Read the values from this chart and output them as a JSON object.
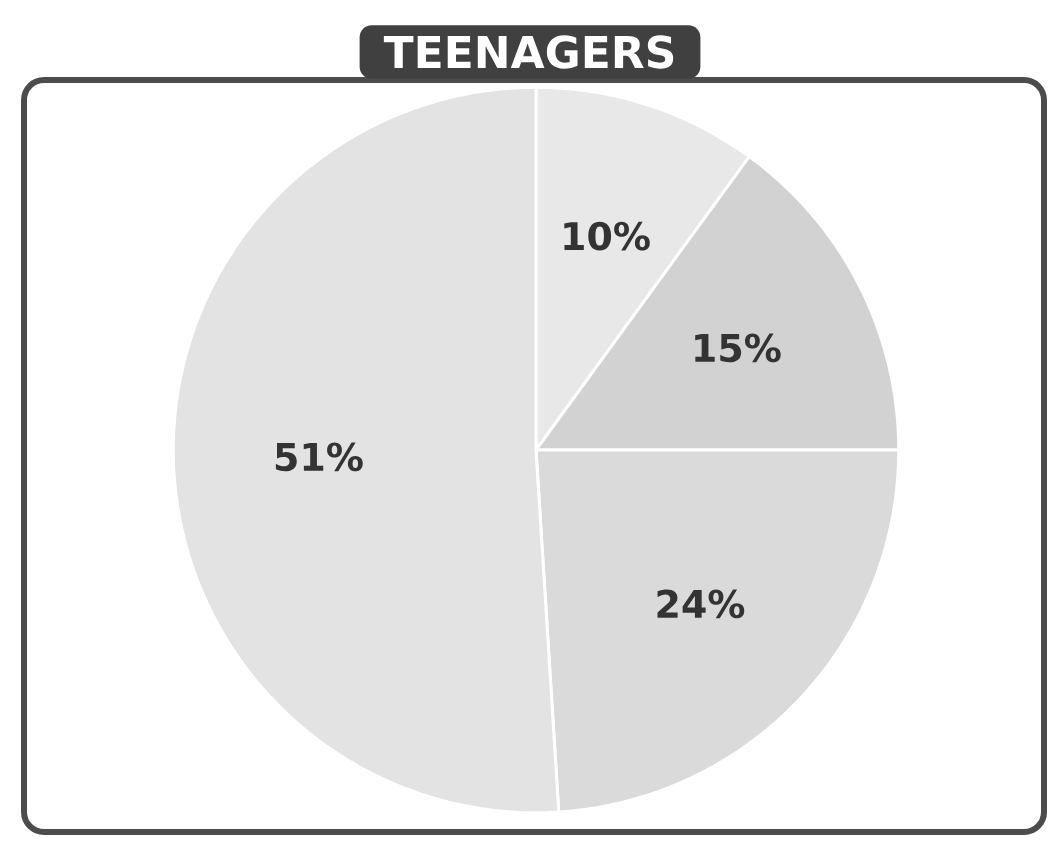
{
  "chart_data": {
    "type": "pie",
    "title": "TEENAGERS",
    "categories": [
      null,
      null,
      null,
      null
    ],
    "values": [
      10,
      15,
      24,
      51
    ],
    "colors": [
      "#e8e8e8",
      "#d2d2d2",
      "#dadada",
      "#e3e3e3"
    ],
    "value_labels": [
      "10%",
      "15%",
      "24%",
      "51%"
    ]
  }
}
